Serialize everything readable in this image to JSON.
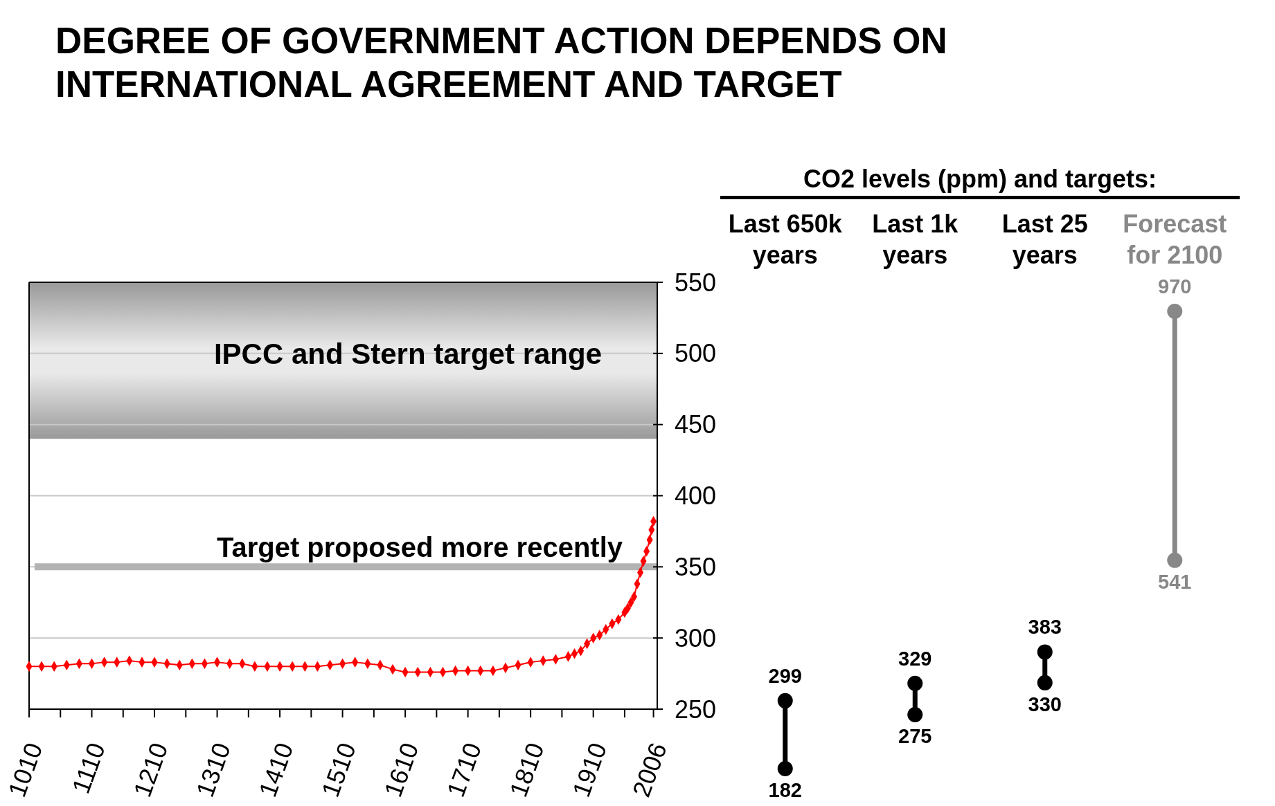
{
  "chart_data": [
    {
      "type": "line",
      "title": "DEGREE OF GOVERNMENT ACTION DEPENDS ON INTERNATIONAL AGREEMENT AND TARGET",
      "x": [
        1010,
        1030,
        1050,
        1070,
        1090,
        1110,
        1130,
        1150,
        1170,
        1190,
        1210,
        1230,
        1250,
        1270,
        1290,
        1310,
        1330,
        1350,
        1370,
        1390,
        1410,
        1430,
        1450,
        1470,
        1490,
        1510,
        1530,
        1550,
        1570,
        1590,
        1610,
        1630,
        1650,
        1670,
        1690,
        1710,
        1730,
        1750,
        1770,
        1790,
        1810,
        1830,
        1850,
        1870,
        1880,
        1890,
        1900,
        1910,
        1920,
        1930,
        1940,
        1950,
        1960,
        1965,
        1970,
        1975,
        1980,
        1985,
        1990,
        1995,
        2000,
        2003,
        2006
      ],
      "series": [
        {
          "color": "#ff0000",
          "values": [
            280,
            280,
            280,
            281,
            282,
            282,
            283,
            283,
            284,
            283,
            283,
            282,
            281,
            282,
            282,
            283,
            282,
            282,
            280,
            280,
            280,
            280,
            280,
            280,
            281,
            282,
            283,
            282,
            281,
            278,
            276,
            276,
            276,
            276,
            277,
            277,
            277,
            277,
            279,
            281,
            283,
            284,
            285,
            287,
            289,
            291,
            296,
            300,
            302,
            306,
            310,
            313,
            318,
            321,
            325,
            329,
            338,
            346,
            354,
            361,
            369,
            376,
            382
          ]
        }
      ],
      "marker": "diamond",
      "line_style": "solid",
      "xlim": [
        1010,
        2012
      ],
      "xticks": [
        1010,
        {
          "value": 1060,
          "label": null
        },
        1110,
        {
          "value": 1160,
          "label": null
        },
        1210,
        {
          "value": 1260,
          "label": null
        },
        1310,
        {
          "value": 1360,
          "label": null
        },
        1410,
        {
          "value": 1460,
          "label": null
        },
        1510,
        {
          "value": 1560,
          "label": null
        },
        1610,
        {
          "value": 1660,
          "label": null
        },
        1710,
        {
          "value": 1760,
          "label": null
        },
        1810,
        {
          "value": 1860,
          "label": null
        },
        1910,
        {
          "value": 1960,
          "label": null
        },
        2006
      ],
      "ylim": [
        250,
        550
      ],
      "yticks": [
        250,
        300,
        350,
        400,
        450,
        500,
        550
      ],
      "grid": "y",
      "bands": [
        {
          "axis": "y",
          "from": 440,
          "to": 550,
          "label": "IPCC and Stern target range",
          "color": "#999999"
        }
      ],
      "ref_lines": [
        {
          "axis": "y",
          "value": 350,
          "label": "Target proposed more recently",
          "color": "#b3b3b3"
        }
      ]
    },
    {
      "type": "line",
      "title": "CO2 levels (ppm) and targets:",
      "categories": [
        "Last 650k years",
        "Last 1k years",
        "Last 25 years",
        "Forecast for 2100"
      ],
      "marker": "circle",
      "line_style": "solid",
      "series": [
        {
          "x": [
            "Last 650k years",
            "Last 650k years"
          ],
          "values": [
            299,
            182
          ],
          "color": "#000000",
          "value_labels": [
            "299",
            "182"
          ]
        },
        {
          "x": [
            "Last 1k years",
            "Last 1k years"
          ],
          "values": [
            329,
            275
          ],
          "color": "#000000",
          "value_labels": [
            "329",
            "275"
          ]
        },
        {
          "x": [
            "Last 25 years",
            "Last 25 years"
          ],
          "values": [
            383,
            330
          ],
          "color": "#000000",
          "value_labels": [
            "383",
            "330"
          ]
        },
        {
          "x": [
            "Forecast for 2100",
            "Forecast for 2100"
          ],
          "values": [
            970,
            541
          ],
          "color": "#888888",
          "value_labels": [
            "970",
            "541"
          ]
        }
      ]
    }
  ]
}
